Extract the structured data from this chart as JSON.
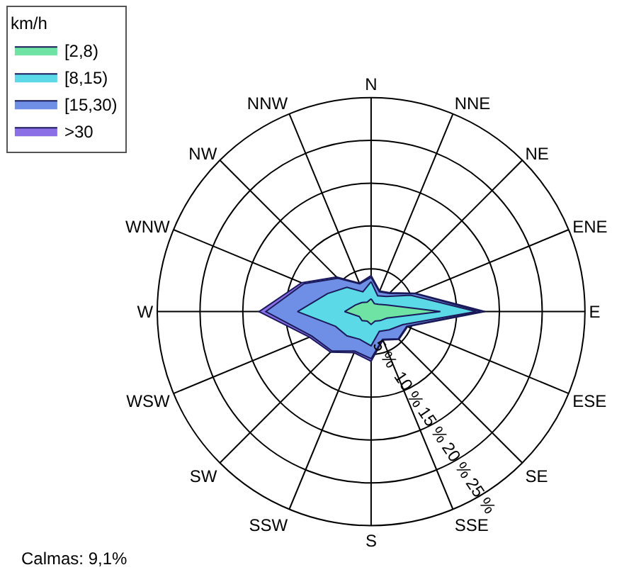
{
  "chart_data": {
    "type": "radar",
    "legend_title": "km/h",
    "legend": "top left",
    "marker": "none",
    "line_style": "solid",
    "grid": true,
    "categories": [
      "N",
      "NNE",
      "NE",
      "ENE",
      "E",
      "ESE",
      "SE",
      "SSE",
      "S",
      "SSW",
      "SW",
      "WSW",
      "W",
      "WNW",
      "NW",
      "NNW"
    ],
    "ylim": [
      0,
      25
    ],
    "yticks": [
      {
        "value": 5,
        "label": "5 %"
      },
      {
        "value": 10,
        "label": "10 %"
      },
      {
        "value": 15,
        "label": "15 %"
      },
      {
        "value": 20,
        "label": "20 %"
      },
      {
        "value": 25,
        "label": "25 %"
      }
    ],
    "series": [
      {
        "name": "[2,8)",
        "color": "#6ee3a4",
        "values": [
          1.5,
          1,
          1.2,
          2,
          8.1,
          2,
          1.5,
          1.2,
          1.5,
          1.2,
          1.5,
          1.5,
          3.1,
          2,
          1.5,
          1.2
        ]
      },
      {
        "name": "[8,15)",
        "color": "#5cd9e6",
        "values": [
          3.5,
          2,
          2.5,
          5,
          12.3,
          4,
          3,
          2.5,
          4,
          3.5,
          4,
          4.5,
          8.6,
          5.5,
          4,
          2.5
        ]
      },
      {
        "name": "[15,30)",
        "color": "#6f8fe6",
        "values": [
          4,
          2.5,
          3,
          5.5,
          12.8,
          4.5,
          4.5,
          3.5,
          5.5,
          5,
          6.5,
          7.5,
          12.3,
          8.5,
          5.5,
          3.5
        ]
      },
      {
        "name": ">30",
        "color": "#8b6fe6",
        "values": [
          4.2,
          2.6,
          3.1,
          5.6,
          13.3,
          4.6,
          4.6,
          3.6,
          5.8,
          5.2,
          6.7,
          7.8,
          13.1,
          8.8,
          5.7,
          3.6
        ]
      }
    ],
    "annotations": [
      "Calmas: 9,1%"
    ]
  }
}
